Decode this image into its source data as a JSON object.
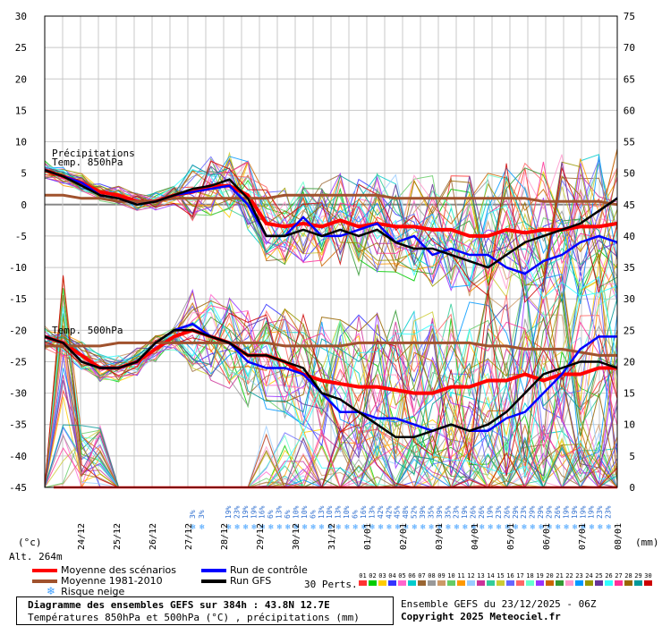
{
  "chart_data": {
    "type": "line",
    "title": "Diagramme des ensembles GEFS sur 384h : 43.8N 12.7E",
    "subtitle": "Températures 850hPa et 500hPa (°C) , précipitations (mm)",
    "ylabel_left": "(°c)",
    "ylabel_right": "(mm)",
    "altitude": "Alt. 264m",
    "left_axis": {
      "ylim": [
        -45,
        30
      ],
      "ticks": [
        30,
        25,
        20,
        15,
        10,
        5,
        0,
        -5,
        -10,
        -15,
        -20,
        -25,
        -30,
        -35,
        -40,
        -45
      ]
    },
    "right_axis": {
      "ylim": [
        0,
        75
      ],
      "ticks": [
        75,
        70,
        65,
        60,
        55,
        50,
        45,
        40,
        35,
        30,
        25,
        20,
        15,
        10,
        5,
        0
      ]
    },
    "x_dates": [
      "24/12",
      "25/12",
      "26/12",
      "27/12",
      "28/12",
      "29/12",
      "30/12",
      "31/12",
      "01/01",
      "02/01",
      "03/01",
      "04/01",
      "05/01",
      "06/01",
      "07/01",
      "08/01"
    ],
    "grid": true,
    "labels": {
      "precip": "Précipitations",
      "t850": "Temp. 850hPa",
      "t500": "Temp. 500hPa"
    },
    "snow_risk": [
      "3%",
      "3%",
      "19%",
      "23%",
      "19%",
      "19%",
      "16%",
      "6%",
      "13%",
      "6%",
      "10%",
      "10%",
      "6%",
      "13%",
      "10%",
      "13%",
      "10%",
      "6%",
      "16%",
      "13%",
      "42%",
      "42%",
      "45%",
      "48%",
      "52%",
      "39%",
      "35%",
      "39%",
      "35%",
      "23%",
      "19%",
      "26%",
      "26%",
      "19%",
      "23%",
      "26%",
      "29%",
      "23%",
      "29%",
      "29%",
      "29%",
      "26%",
      "19%",
      "19%",
      "19%",
      "19%",
      "23%",
      "23%"
    ],
    "series": [
      {
        "name": "Moyenne des scénarios",
        "color": "#ff0000",
        "t850": [
          5.5,
          4.5,
          3.5,
          2,
          1.5,
          0.5,
          0.5,
          1.5,
          2,
          3,
          3,
          1.5,
          -3,
          -3.5,
          -3,
          -3.5,
          -2.5,
          -3.5,
          -3,
          -3.5,
          -3.5,
          -4,
          -4,
          -5,
          -5,
          -4,
          -4.5,
          -4,
          -4,
          -3.5,
          -3.5,
          -3
        ],
        "t500": [
          -21,
          -22,
          -24,
          -26,
          -26,
          -25,
          -23,
          -21,
          -20,
          -21,
          -22,
          -24,
          -24,
          -25,
          -27,
          -28,
          -28.5,
          -29,
          -29,
          -29.5,
          -30,
          -30,
          -29,
          -29,
          -28,
          -28,
          -27,
          -28,
          -27,
          -27,
          -26,
          -26
        ]
      },
      {
        "name": "Moyenne 1981-2010",
        "color": "#a0522d",
        "t850": [
          1.5,
          1.5,
          1,
          1,
          0.5,
          0.5,
          0.5,
          1,
          1,
          1,
          1,
          1,
          1,
          1.5,
          1.5,
          1.5,
          1.5,
          1.5,
          1.5,
          1,
          1,
          1,
          1,
          1,
          1,
          1,
          1,
          0.5,
          0.5,
          0.5,
          0.5,
          0
        ],
        "t500": [
          -22.5,
          -22.5,
          -22.5,
          -22.5,
          -22,
          -22,
          -22,
          -22,
          -22,
          -22,
          -22,
          -22,
          -22,
          -22.5,
          -22.5,
          -22.5,
          -22.5,
          -22,
          -22,
          -22,
          -22,
          -22,
          -22,
          -22,
          -22.5,
          -22.5,
          -23,
          -23,
          -23,
          -23.5,
          -24,
          -24
        ]
      },
      {
        "name": "Run de contrôle",
        "color": "#0000ff",
        "t850": [
          5.5,
          4.5,
          3.5,
          1.5,
          1,
          0,
          0.5,
          1.5,
          2,
          2.5,
          3,
          0,
          -5,
          -5,
          -2,
          -5,
          -5,
          -4,
          -3,
          -6,
          -5,
          -8,
          -7,
          -8,
          -8,
          -10,
          -11,
          -9,
          -8,
          -6,
          -5,
          -6
        ],
        "t500": [
          -21,
          -22,
          -25,
          -26,
          -26,
          -25,
          -22,
          -20,
          -19,
          -21,
          -22,
          -25,
          -26,
          -26,
          -27,
          -30,
          -33,
          -33,
          -34,
          -34,
          -35,
          -36,
          -35,
          -36,
          -36,
          -34,
          -33,
          -30,
          -27,
          -23,
          -21,
          -21
        ]
      },
      {
        "name": "Run GFS",
        "color": "#000000",
        "t850": [
          5.5,
          4.5,
          3,
          1.5,
          1,
          0,
          0.5,
          1.5,
          2.5,
          3,
          4,
          1,
          -5,
          -5,
          -4,
          -5,
          -4,
          -5,
          -4,
          -6,
          -7,
          -7,
          -8,
          -9,
          -10,
          -8,
          -6,
          -5,
          -4,
          -3,
          -1,
          1
        ],
        "t500": [
          -21,
          -22,
          -25,
          -26,
          -26,
          -25,
          -22,
          -20,
          -20,
          -21,
          -22,
          -24,
          -24,
          -25,
          -26,
          -30,
          -31,
          -33,
          -35,
          -37,
          -37,
          -36,
          -35,
          -36,
          -35,
          -33,
          -30,
          -27,
          -26,
          -25,
          -25,
          -26
        ]
      }
    ],
    "legend": [
      {
        "label": "Moyenne des scénarios",
        "color": "#ff0000"
      },
      {
        "label": "Moyenne 1981-2010",
        "color": "#a0522d"
      },
      {
        "label": "Run de contrôle",
        "color": "#0000ff"
      },
      {
        "label": "Run GFS",
        "color": "#000000"
      },
      {
        "label": "Risque neige",
        "color": "#40a0ff"
      }
    ],
    "perts_label": "30 Perts.",
    "perts": [
      "01",
      "02",
      "03",
      "04",
      "05",
      "06",
      "07",
      "08",
      "09",
      "10",
      "11",
      "12",
      "13",
      "14",
      "15",
      "16",
      "17",
      "18",
      "19",
      "20",
      "21",
      "22",
      "23",
      "24",
      "25",
      "26",
      "27",
      "28",
      "29",
      "30"
    ],
    "pert_colors": [
      "#ff3333",
      "#00cc00",
      "#ffcc00",
      "#3333ff",
      "#ff66cc",
      "#00cccc",
      "#996633",
      "#999999",
      "#cc9966",
      "#66cc66",
      "#ff9900",
      "#99ccff",
      "#cc3399",
      "#33cc99",
      "#cccc33",
      "#6666ff",
      "#ff6666",
      "#66ffcc",
      "#9933ff",
      "#cc6600",
      "#339933",
      "#ff99cc",
      "#0099ff",
      "#999900",
      "#663399",
      "#33ffff",
      "#ff3399",
      "#996600",
      "#009999",
      "#cc0000"
    ]
  },
  "footer": {
    "left_title": "Diagramme des ensembles GEFS sur 384h : 43.8N 12.7E",
    "left_sub": "Températures 850hPa et 500hPa (°C) , précipitations (mm)",
    "right_title": "Ensemble GEFS du 23/12/2025 - 06Z",
    "right_sub": "Copyright 2025 Meteociel.fr"
  }
}
